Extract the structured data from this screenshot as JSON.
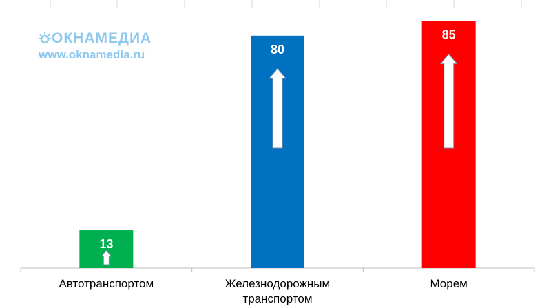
{
  "watermark": {
    "logo_text": "ОКНАМЕДИА",
    "url": "www.oknamedia.ru",
    "color": "#8ec8ee"
  },
  "chart_data": {
    "type": "bar",
    "title": "",
    "xlabel": "",
    "ylabel": "",
    "ylim": [
      0,
      88
    ],
    "grid": "vertical category separators",
    "categories": [
      [
        "Автотранспортом"
      ],
      [
        "Железнодорожным",
        "транспортом"
      ],
      [
        "Морем"
      ]
    ],
    "values": [
      13,
      80,
      85
    ],
    "colors": [
      "#00b050",
      "#0070c0",
      "#ff0000"
    ],
    "label_color": "#ffffff",
    "arrow": "up-arrow-icon"
  }
}
